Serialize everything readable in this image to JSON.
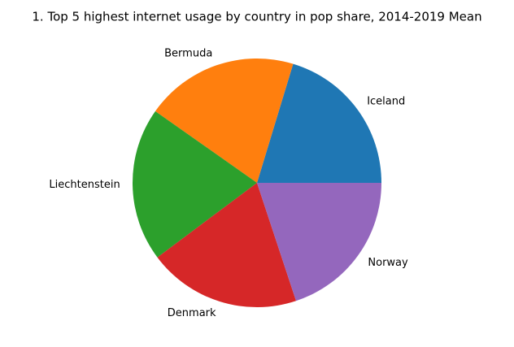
{
  "chart_data": {
    "type": "pie",
    "title": "1. Top 5 highest internet usage by country in pop share, 2014-2019 Mean",
    "categories": [
      "Iceland",
      "Bermuda",
      "Liechtenstein",
      "Denmark",
      "Norway"
    ],
    "values": [
      98.3,
      96.4,
      96.8,
      96.1,
      96.4
    ],
    "colors": [
      "#1f77b4",
      "#ff7f0e",
      "#2ca02c",
      "#d62728",
      "#9467bd"
    ]
  }
}
